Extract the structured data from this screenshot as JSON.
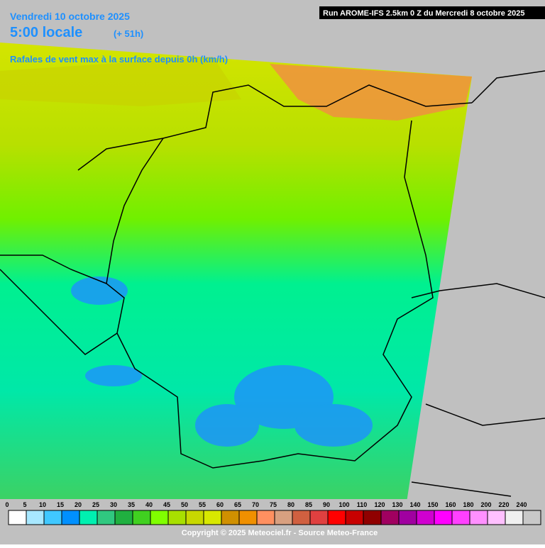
{
  "header": {
    "date": "Vendredi 10 octobre 2025",
    "time": "5:00 locale",
    "lead": "(+ 51h)",
    "parameter": "Rafales de vent max à la surface depuis 0h (km/h)",
    "run": "Run AROME-IFS 2.5km 0 Z du Mercredi 8 octobre 2025"
  },
  "legend": {
    "items": [
      {
        "label": 0,
        "color": "#ffffff"
      },
      {
        "label": 5,
        "color": "#a8e8ff"
      },
      {
        "label": 10,
        "color": "#40c8ff"
      },
      {
        "label": 15,
        "color": "#0090ff"
      },
      {
        "label": 20,
        "color": "#00f0b0"
      },
      {
        "label": 25,
        "color": "#30c880"
      },
      {
        "label": 30,
        "color": "#20b040"
      },
      {
        "label": 35,
        "color": "#40d020"
      },
      {
        "label": 40,
        "color": "#80ff00"
      },
      {
        "label": 45,
        "color": "#a8e000"
      },
      {
        "label": 50,
        "color": "#c8d800"
      },
      {
        "label": 55,
        "color": "#d8e800"
      },
      {
        "label": 60,
        "color": "#d09000"
      },
      {
        "label": 65,
        "color": "#f09000"
      },
      {
        "label": 70,
        "color": "#ff9060"
      },
      {
        "label": 75,
        "color": "#d8a080"
      },
      {
        "label": 80,
        "color": "#d06040"
      },
      {
        "label": 85,
        "color": "#e04040"
      },
      {
        "label": 90,
        "color": "#ff0000"
      },
      {
        "label": 100,
        "color": "#c80000"
      },
      {
        "label": 110,
        "color": "#900000"
      },
      {
        "label": 120,
        "color": "#a00060"
      },
      {
        "label": 130,
        "color": "#a000a0"
      },
      {
        "label": 140,
        "color": "#d000d0"
      },
      {
        "label": 150,
        "color": "#ff00ff"
      },
      {
        "label": 160,
        "color": "#ff40ff"
      },
      {
        "label": 180,
        "color": "#ff90ff"
      },
      {
        "label": 200,
        "color": "#ffc0ff"
      },
      {
        "label": 220,
        "color": "#f0f0f0"
      },
      {
        "label": 240,
        "color": "#c8c8c8"
      }
    ]
  },
  "footer": {
    "copyright": "Copyright © 2025 Meteociel.fr - Source Meteo-France"
  }
}
